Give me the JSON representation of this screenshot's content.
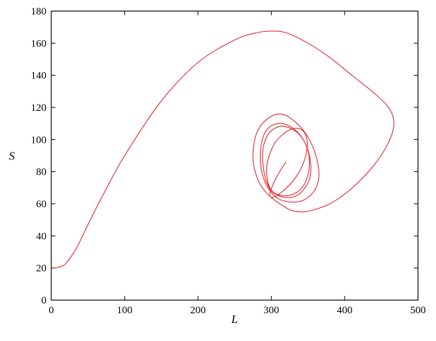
{
  "chart_data": {
    "type": "line",
    "title": "",
    "xlabel": "L",
    "ylabel": "S",
    "xlim": [
      0,
      500
    ],
    "ylim": [
      0,
      180
    ],
    "xticks": [
      0,
      100,
      200,
      300,
      400,
      500
    ],
    "yticks": [
      0,
      20,
      40,
      60,
      80,
      100,
      120,
      140,
      160,
      180
    ],
    "grid": false,
    "legend": "none",
    "series": [
      {
        "color": "#e8262a",
        "x": [
          0,
          10,
          20,
          35,
          50,
          70,
          100,
          150,
          200,
          250,
          280,
          300,
          320,
          350,
          380,
          410,
          440,
          460,
          467,
          465,
          455,
          440,
          420,
          400,
          380,
          360,
          345,
          330,
          322,
          315,
          305,
          295,
          285,
          278,
          275,
          276,
          280,
          290,
          305,
          320,
          335,
          348,
          357,
          363,
          365,
          362,
          355,
          345,
          332,
          320,
          310,
          300,
          292,
          287,
          285,
          286,
          290,
          298,
          310,
          322,
          335,
          346,
          352,
          354,
          352,
          346,
          338,
          328,
          318,
          308,
          300,
          294,
          290,
          288,
          289,
          293,
          300,
          310,
          320,
          332,
          342,
          349,
          352,
          351,
          347,
          340,
          330,
          320,
          310,
          302,
          297,
          294,
          294,
          298,
          305,
          315,
          325,
          335,
          343,
          348,
          349,
          346,
          340,
          331,
          321,
          312,
          305,
          300,
          298,
          299,
          303,
          310,
          320
        ],
        "y": [
          20,
          20.5,
          23,
          33,
          47,
          65,
          90,
          124,
          148,
          162,
          166.5,
          167.5,
          166.5,
          160,
          151,
          140,
          129,
          120,
          112,
          104,
          94,
          84,
          74,
          66,
          60,
          56.5,
          55,
          55.5,
          57,
          59,
          62,
          66,
          72,
          80,
          88,
          96,
          104,
          111,
          115.5,
          115,
          110,
          103,
          95,
          86,
          78,
          71,
          66,
          62.5,
          61,
          61.5,
          63,
          67,
          73,
          80,
          88,
          96,
          103,
          108,
          110,
          109,
          105,
          98,
          90,
          82,
          75,
          70,
          66,
          64,
          64,
          65.5,
          68,
          73,
          80,
          88,
          95,
          101,
          105.5,
          108,
          108,
          105.5,
          101,
          94.5,
          87,
          80,
          74,
          69,
          66,
          65,
          65.5,
          67.5,
          71,
          77,
          84,
          91,
          98,
          103,
          106,
          107,
          105.5,
          101.5,
          95.5,
          88.5,
          81.5,
          75,
          70,
          66.5,
          64.5,
          64,
          65,
          68,
          72.5,
          79,
          86
        ]
      }
    ]
  }
}
